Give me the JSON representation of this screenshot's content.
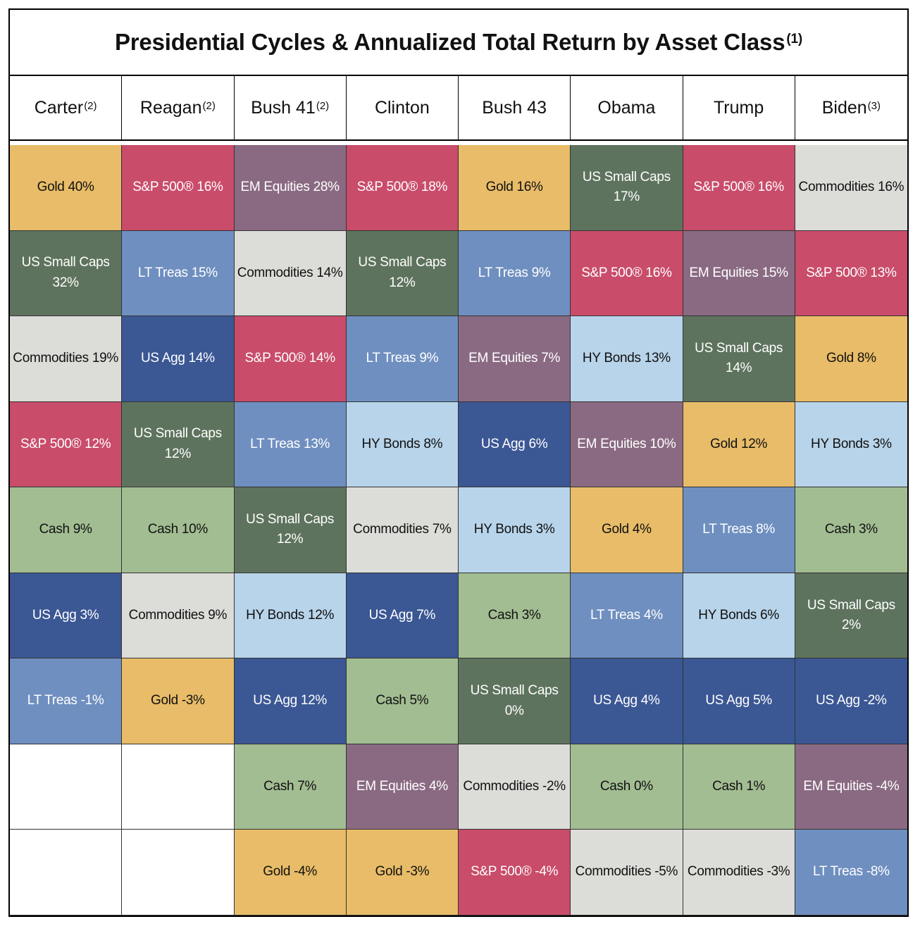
{
  "chart_data": {
    "type": "table",
    "title": "Presidential Cycles & Annualized Total Return by Asset Class",
    "title_footnote": "(1)",
    "columns": [
      {
        "name": "Carter",
        "footnote": "(2)"
      },
      {
        "name": "Reagan",
        "footnote": "(2)"
      },
      {
        "name": "Bush 41",
        "footnote": "(2)"
      },
      {
        "name": "Clinton",
        "footnote": ""
      },
      {
        "name": "Bush 43",
        "footnote": ""
      },
      {
        "name": "Obama",
        "footnote": ""
      },
      {
        "name": "Trump",
        "footnote": ""
      },
      {
        "name": "Biden",
        "footnote": "(3)"
      }
    ],
    "ranks": [
      [
        {
          "label": "Gold  40%",
          "asset": "gold",
          "value": 40
        },
        {
          "label": "S&P 500®  16%",
          "asset": "sp500",
          "value": 16
        },
        {
          "label": "EM Equities  28%",
          "asset": "em",
          "value": 28
        },
        {
          "label": "S&P 500®  18%",
          "asset": "sp500",
          "value": 18
        },
        {
          "label": "Gold  16%",
          "asset": "gold",
          "value": 16
        },
        {
          "label": "US Small Caps\n17%",
          "asset": "smallcaps",
          "value": 17
        },
        {
          "label": "S&P 500®  16%",
          "asset": "sp500",
          "value": 16
        },
        {
          "label": "Commodities  16%",
          "asset": "commodities",
          "value": 16
        }
      ],
      [
        {
          "label": "US Small Caps\n32%",
          "asset": "smallcaps",
          "value": 32
        },
        {
          "label": "LT Treas  15%",
          "asset": "lttreas",
          "value": 15
        },
        {
          "label": "Commodities  14%",
          "asset": "commodities",
          "value": 14
        },
        {
          "label": "US Small Caps\n12%",
          "asset": "smallcaps",
          "value": 12
        },
        {
          "label": "LT Treas  9%",
          "asset": "lttreas",
          "value": 9
        },
        {
          "label": "S&P 500®  16%",
          "asset": "sp500",
          "value": 16
        },
        {
          "label": "EM Equities  15%",
          "asset": "em",
          "value": 15
        },
        {
          "label": "S&P 500®  13%",
          "asset": "sp500",
          "value": 13
        }
      ],
      [
        {
          "label": "Commodities  19%",
          "asset": "commodities",
          "value": 19
        },
        {
          "label": "US Agg  14%",
          "asset": "usagg",
          "value": 14
        },
        {
          "label": "S&P 500®  14%",
          "asset": "sp500",
          "value": 14
        },
        {
          "label": "LT Treas  9%",
          "asset": "lttreas",
          "value": 9
        },
        {
          "label": "EM Equities  7%",
          "asset": "em",
          "value": 7
        },
        {
          "label": "HY Bonds  13%",
          "asset": "hybonds",
          "value": 13
        },
        {
          "label": "US Small Caps\n14%",
          "asset": "smallcaps",
          "value": 14
        },
        {
          "label": "Gold  8%",
          "asset": "gold",
          "value": 8
        }
      ],
      [
        {
          "label": "S&P 500®  12%",
          "asset": "sp500",
          "value": 12
        },
        {
          "label": "US Small Caps\n12%",
          "asset": "smallcaps",
          "value": 12
        },
        {
          "label": "LT Treas  13%",
          "asset": "lttreas",
          "value": 13
        },
        {
          "label": "HY Bonds  8%",
          "asset": "hybonds",
          "value": 8
        },
        {
          "label": "US Agg  6%",
          "asset": "usagg",
          "value": 6
        },
        {
          "label": "EM Equities  10%",
          "asset": "em",
          "value": 10
        },
        {
          "label": "Gold  12%",
          "asset": "gold",
          "value": 12
        },
        {
          "label": "HY Bonds  3%",
          "asset": "hybonds",
          "value": 3
        }
      ],
      [
        {
          "label": "Cash  9%",
          "asset": "cash",
          "value": 9
        },
        {
          "label": "Cash  10%",
          "asset": "cash",
          "value": 10
        },
        {
          "label": "US Small Caps\n12%",
          "asset": "smallcaps",
          "value": 12
        },
        {
          "label": "Commodities  7%",
          "asset": "commodities",
          "value": 7
        },
        {
          "label": "HY Bonds  3%",
          "asset": "hybonds",
          "value": 3
        },
        {
          "label": "Gold  4%",
          "asset": "gold",
          "value": 4
        },
        {
          "label": "LT Treas  8%",
          "asset": "lttreas",
          "value": 8
        },
        {
          "label": "Cash  3%",
          "asset": "cash",
          "value": 3
        }
      ],
      [
        {
          "label": "US Agg  3%",
          "asset": "usagg",
          "value": 3
        },
        {
          "label": "Commodities  9%",
          "asset": "commodities",
          "value": 9
        },
        {
          "label": "HY Bonds  12%",
          "asset": "hybonds",
          "value": 12
        },
        {
          "label": "US Agg  7%",
          "asset": "usagg",
          "value": 7
        },
        {
          "label": "Cash  3%",
          "asset": "cash",
          "value": 3
        },
        {
          "label": "LT Treas  4%",
          "asset": "lttreas",
          "value": 4
        },
        {
          "label": "HY Bonds  6%",
          "asset": "hybonds",
          "value": 6
        },
        {
          "label": "US Small Caps  2%",
          "asset": "smallcaps",
          "value": 2
        }
      ],
      [
        {
          "label": "LT Treas  -1%",
          "asset": "lttreas",
          "value": -1
        },
        {
          "label": "Gold  -3%",
          "asset": "gold",
          "value": -3
        },
        {
          "label": "US Agg  12%",
          "asset": "usagg",
          "value": 12
        },
        {
          "label": "Cash  5%",
          "asset": "cash",
          "value": 5
        },
        {
          "label": "US Small Caps  0%",
          "asset": "smallcaps",
          "value": 0
        },
        {
          "label": "US Agg  4%",
          "asset": "usagg",
          "value": 4
        },
        {
          "label": "US Agg  5%",
          "asset": "usagg",
          "value": 5
        },
        {
          "label": "US Agg  -2%",
          "asset": "usagg",
          "value": -2
        }
      ],
      [
        null,
        null,
        {
          "label": "Cash  7%",
          "asset": "cash",
          "value": 7
        },
        {
          "label": "EM Equities  4%",
          "asset": "em",
          "value": 4
        },
        {
          "label": "Commodities  -2%",
          "asset": "commodities",
          "value": -2
        },
        {
          "label": "Cash  0%",
          "asset": "cash",
          "value": 0
        },
        {
          "label": "Cash  1%",
          "asset": "cash",
          "value": 1
        },
        {
          "label": "EM Equities  -4%",
          "asset": "em",
          "value": -4
        }
      ],
      [
        null,
        null,
        {
          "label": "Gold  -4%",
          "asset": "gold",
          "value": -4
        },
        {
          "label": "Gold  -3%",
          "asset": "gold",
          "value": -3
        },
        {
          "label": "S&P 500®  -4%",
          "asset": "sp500",
          "value": -4
        },
        {
          "label": "Commodities  -5%",
          "asset": "commodities",
          "value": -5
        },
        {
          "label": "Commodities  -3%",
          "asset": "commodities",
          "value": -3
        },
        {
          "label": "LT Treas  -8%",
          "asset": "lttreas",
          "value": -8
        }
      ]
    ]
  },
  "asset_colors": {
    "gold": {
      "bg": "#e8bc68",
      "fg": "#111111"
    },
    "sp500": {
      "bg": "#c94c6a",
      "fg": "#ffffff"
    },
    "em": {
      "bg": "#8a6a82",
      "fg": "#ffffff"
    },
    "smallcaps": {
      "bg": "#5e735e",
      "fg": "#ffffff"
    },
    "commodities": {
      "bg": "#dcdcd8",
      "fg": "#111111"
    },
    "lttreas": {
      "bg": "#6f8fc0",
      "fg": "#ffffff"
    },
    "usagg": {
      "bg": "#3b5794",
      "fg": "#ffffff"
    },
    "hybonds": {
      "bg": "#b8d4ea",
      "fg": "#111111"
    },
    "cash": {
      "bg": "#a2bd92",
      "fg": "#111111"
    }
  }
}
